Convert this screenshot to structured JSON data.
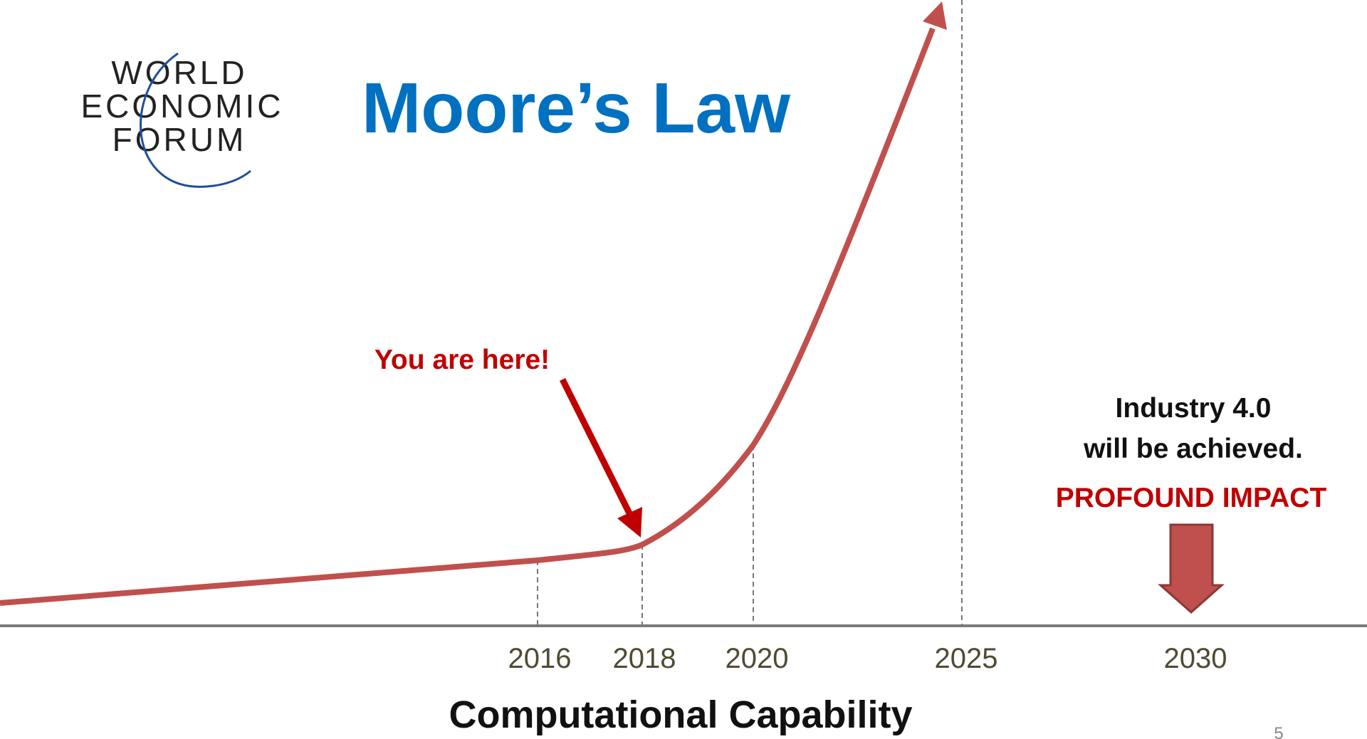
{
  "logo": {
    "lines": [
      "WORLD",
      "ECONOMIC",
      "FORUM"
    ]
  },
  "title": "Moore’s Law",
  "years": [
    "2016",
    "2018",
    "2020",
    "2025",
    "2030"
  ],
  "axis_label": "Computational Capability",
  "callout": "You are here!",
  "note": {
    "lines": [
      "Industry 4.0",
      "will be achieved."
    ],
    "highlight": "PROFOUND IMPACT"
  },
  "page_number": "5"
}
